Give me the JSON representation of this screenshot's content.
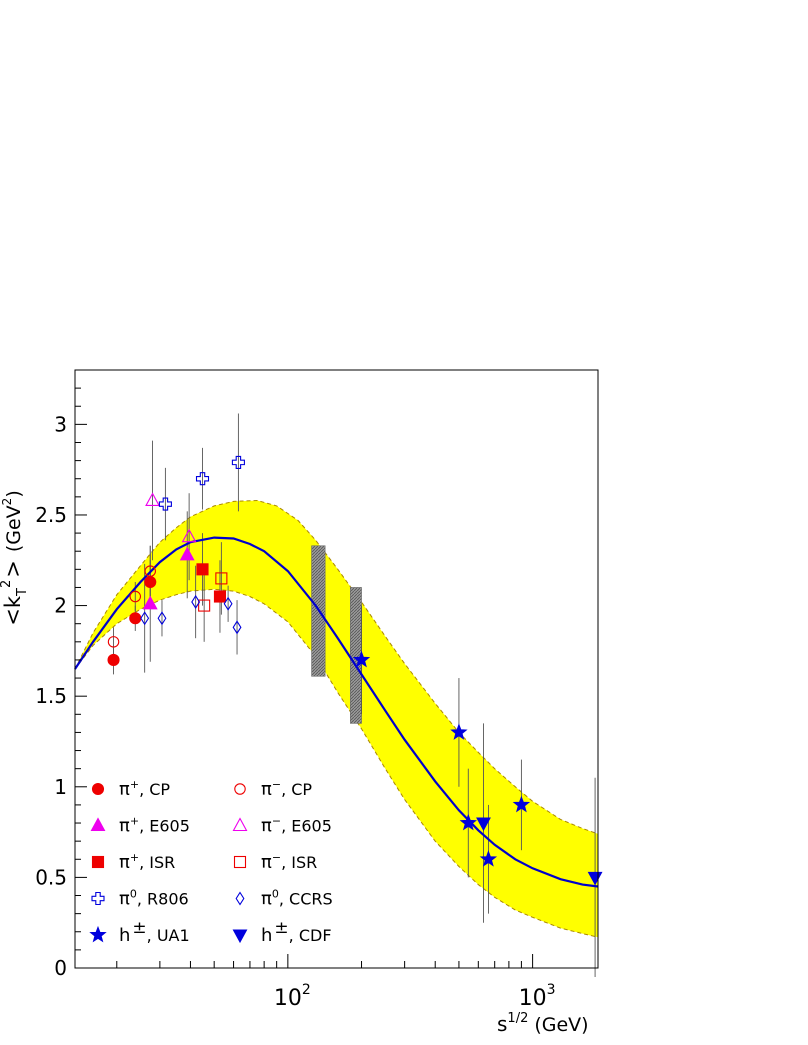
{
  "chart_data": {
    "type": "scatter",
    "xlabel": "s^{1/2} (GeV)",
    "xlabel_main": "s",
    "xlabel_sup": "1/2",
    "xlabel_unit": "(GeV)",
    "ylabel": "<k_T^2> (GeV^2)",
    "ylabel_parts": {
      "open": "<k",
      "sub": "T",
      "sup": "2",
      "close": ">",
      "unit": "(GeV",
      "unit_sup": "2",
      "unit_close": ")"
    },
    "x_scale": "log",
    "xlim": [
      13.5,
      1850
    ],
    "ylim": [
      0,
      3.3
    ],
    "grid": false,
    "legend_position": "bottom-left",
    "x_tick_labels": [
      {
        "base": "10",
        "exp": "2",
        "value": 100
      },
      {
        "base": "10",
        "exp": "3",
        "value": 1000
      }
    ],
    "y_ticks": [
      {
        "value": 0,
        "label": "0"
      },
      {
        "value": 0.5,
        "label": "0.5"
      },
      {
        "value": 1,
        "label": "1"
      },
      {
        "value": 1.5,
        "label": "1.5"
      },
      {
        "value": 2,
        "label": "2"
      },
      {
        "value": 2.5,
        "label": "2.5"
      },
      {
        "value": 3,
        "label": "3"
      }
    ],
    "fit_curve": {
      "color": "#0000cc",
      "points": [
        [
          13.5,
          1.65
        ],
        [
          16,
          1.8
        ],
        [
          20,
          1.98
        ],
        [
          25,
          2.13
        ],
        [
          30,
          2.24
        ],
        [
          35,
          2.31
        ],
        [
          40,
          2.35
        ],
        [
          50,
          2.375
        ],
        [
          60,
          2.37
        ],
        [
          70,
          2.34
        ],
        [
          80,
          2.3
        ],
        [
          100,
          2.19
        ],
        [
          130,
          2.0
        ],
        [
          160,
          1.82
        ],
        [
          200,
          1.62
        ],
        [
          250,
          1.42
        ],
        [
          300,
          1.26
        ],
        [
          400,
          1.03
        ],
        [
          500,
          0.87
        ],
        [
          600,
          0.76
        ],
        [
          700,
          0.68
        ],
        [
          850,
          0.6
        ],
        [
          1000,
          0.55
        ],
        [
          1300,
          0.49
        ],
        [
          1600,
          0.46
        ],
        [
          1850,
          0.45
        ]
      ]
    },
    "band": {
      "color": "#ffff00",
      "edge_color": "#aa8800",
      "upper": [
        [
          13.5,
          1.65
        ],
        [
          16,
          1.85
        ],
        [
          20,
          2.06
        ],
        [
          25,
          2.22
        ],
        [
          30,
          2.35
        ],
        [
          35,
          2.43
        ],
        [
          40,
          2.49
        ],
        [
          50,
          2.55
        ],
        [
          60,
          2.575
        ],
        [
          75,
          2.58
        ],
        [
          90,
          2.55
        ],
        [
          110,
          2.47
        ],
        [
          130,
          2.36
        ],
        [
          160,
          2.2
        ],
        [
          200,
          2.02
        ],
        [
          250,
          1.83
        ],
        [
          300,
          1.68
        ],
        [
          400,
          1.46
        ],
        [
          500,
          1.3
        ],
        [
          600,
          1.19
        ],
        [
          700,
          1.1
        ],
        [
          850,
          1.0
        ],
        [
          1000,
          0.92
        ],
        [
          1300,
          0.82
        ],
        [
          1600,
          0.77
        ],
        [
          1850,
          0.74
        ]
      ],
      "lower": [
        [
          13.5,
          1.65
        ],
        [
          16,
          1.78
        ],
        [
          20,
          1.9
        ],
        [
          25,
          1.98
        ],
        [
          30,
          2.03
        ],
        [
          35,
          2.06
        ],
        [
          40,
          2.08
        ],
        [
          50,
          2.09
        ],
        [
          60,
          2.08
        ],
        [
          70,
          2.05
        ],
        [
          80,
          2.01
        ],
        [
          100,
          1.91
        ],
        [
          130,
          1.72
        ],
        [
          160,
          1.52
        ],
        [
          200,
          1.32
        ],
        [
          250,
          1.1
        ],
        [
          300,
          0.93
        ],
        [
          400,
          0.7
        ],
        [
          500,
          0.56
        ],
        [
          600,
          0.46
        ],
        [
          700,
          0.39
        ],
        [
          850,
          0.32
        ],
        [
          1000,
          0.28
        ],
        [
          1300,
          0.22
        ],
        [
          1600,
          0.19
        ],
        [
          1850,
          0.17
        ]
      ]
    },
    "boxes": [
      {
        "x1": 125,
        "x2": 142,
        "y1": 1.61,
        "y2": 2.33,
        "color": "#888888"
      },
      {
        "x1": 180,
        "x2": 200,
        "y1": 1.35,
        "y2": 2.1,
        "color": "#888888"
      }
    ],
    "series": [
      {
        "name": "π⁺, CP",
        "marker": "circle",
        "filled": true,
        "color": "#ee0000",
        "points": [
          {
            "x": 19.4,
            "y": 1.7,
            "err": 0.08
          },
          {
            "x": 23.8,
            "y": 1.93,
            "err": 0.07
          },
          {
            "x": 27.4,
            "y": 2.13,
            "err": 0.12
          }
        ]
      },
      {
        "name": "π⁻, CP",
        "marker": "circle",
        "filled": false,
        "color": "#ee0000",
        "points": [
          {
            "x": 19.4,
            "y": 1.8,
            "err": 0.08
          },
          {
            "x": 23.8,
            "y": 2.05,
            "err": 0.08
          },
          {
            "x": 27.4,
            "y": 2.19,
            "err": 0.14
          }
        ]
      },
      {
        "name": "π⁺, E605",
        "marker": "triangle-up",
        "filled": true,
        "color": "#ee00ee",
        "points": [
          {
            "x": 27.4,
            "y": 2.01,
            "err": 0.32
          },
          {
            "x": 38.8,
            "y": 2.28,
            "err": 0.24
          }
        ]
      },
      {
        "name": "π⁻, E605",
        "marker": "triangle-up",
        "filled": false,
        "color": "#ee00ee",
        "points": [
          {
            "x": 28.0,
            "y": 2.58,
            "err": 0.33
          },
          {
            "x": 39.5,
            "y": 2.38,
            "err": 0.24
          }
        ]
      },
      {
        "name": "π⁺, ISR",
        "marker": "square",
        "filled": true,
        "color": "#ee0000",
        "points": [
          {
            "x": 44.8,
            "y": 2.2,
            "err": 0.2
          },
          {
            "x": 52.8,
            "y": 2.05,
            "err": 0.2
          }
        ]
      },
      {
        "name": "π⁻, ISR",
        "marker": "square",
        "filled": false,
        "color": "#ee0000",
        "points": [
          {
            "x": 45.5,
            "y": 2.0,
            "err": 0.2
          },
          {
            "x": 53.5,
            "y": 2.15,
            "err": 0.2
          }
        ]
      },
      {
        "name": "π⁰, R806",
        "marker": "cross",
        "filled": false,
        "color": "#0000dd",
        "points": [
          {
            "x": 31.6,
            "y": 2.56,
            "err": 0.2
          },
          {
            "x": 44.8,
            "y": 2.7,
            "err": 0.17
          },
          {
            "x": 62.8,
            "y": 2.79,
            "err": 0.27
          }
        ]
      },
      {
        "name": "π⁰, CCRS",
        "marker": "diamond",
        "filled": false,
        "color": "#0000dd",
        "points": [
          {
            "x": 26.0,
            "y": 1.93,
            "err": 0.3
          },
          {
            "x": 30.6,
            "y": 1.93,
            "err": 0.1
          },
          {
            "x": 42.0,
            "y": 2.02,
            "err": 0.2
          },
          {
            "x": 57.0,
            "y": 2.01,
            "err": 0.1
          },
          {
            "x": 62.0,
            "y": 1.88,
            "err": 0.15
          }
        ]
      },
      {
        "name": "h±, UA1",
        "marker": "star",
        "filled": true,
        "color": "#0000dd",
        "points": [
          {
            "x": 200,
            "y": 1.7,
            "err": 0.3
          },
          {
            "x": 500,
            "y": 1.3,
            "err": 0.3
          },
          {
            "x": 546,
            "y": 0.8,
            "err": 0.3
          },
          {
            "x": 660,
            "y": 0.6,
            "err": 0.3
          },
          {
            "x": 900,
            "y": 0.9,
            "err": 0.25
          }
        ]
      },
      {
        "name": "h±, CDF",
        "marker": "triangle-down",
        "filled": true,
        "color": "#0000dd",
        "points": [
          {
            "x": 630,
            "y": 0.8,
            "err": 0.55
          },
          {
            "x": 1800,
            "y": 0.5,
            "err": 0.55
          }
        ]
      }
    ],
    "legend": [
      {
        "label": "π⁺, CP",
        "sym": "π",
        "sup": "+",
        "rest": ", CP",
        "series": 0
      },
      {
        "label": "π⁻, CP",
        "sym": "π",
        "sup": "−",
        "rest": ", CP",
        "series": 1
      },
      {
        "label": "π⁺, E605",
        "sym": "π",
        "sup": "+",
        "rest": ", E605",
        "series": 2
      },
      {
        "label": "π⁻, E605",
        "sym": "π",
        "sup": "−",
        "rest": ", E605",
        "series": 3
      },
      {
        "label": "π⁺, ISR",
        "sym": "π",
        "sup": "+",
        "rest": ", ISR",
        "series": 4
      },
      {
        "label": "π⁻, ISR",
        "sym": "π",
        "sup": "−",
        "rest": ", ISR",
        "series": 5
      },
      {
        "label": "π⁰, R806",
        "sym": "π",
        "sup": "0",
        "rest": ", R806",
        "series": 6
      },
      {
        "label": "π⁰, CCRS",
        "sym": "π",
        "sup": "0",
        "rest": ", CCRS",
        "series": 7
      },
      {
        "label": "h±, UA1",
        "sym": "h",
        "sup": "±",
        "rest": ", UA1",
        "series": 8
      },
      {
        "label": "h±, CDF",
        "sym": "h",
        "sup": "±",
        "rest": ", CDF",
        "series": 9
      }
    ]
  }
}
